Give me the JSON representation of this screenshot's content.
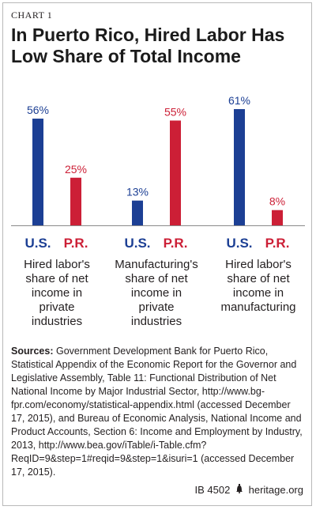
{
  "header": {
    "label": "CHART 1",
    "title_line1": "In Puerto Rico, Hired Labor Has",
    "title_line2": "Low Share of Total Income"
  },
  "chart_data": {
    "type": "bar",
    "categories": [
      "Hired labor's share of net income in private industries",
      "Manufacturing's share of net income in private industries",
      "Hired labor's share of net income in manufacturing"
    ],
    "category_lines": [
      [
        "Hired labor's",
        "share of net",
        "income in",
        "private",
        "industries"
      ],
      [
        "Manufacturing's",
        "share of net",
        "income in",
        "private",
        "industries"
      ],
      [
        "Hired labor's",
        "share of net",
        "income in",
        "manufacturing"
      ]
    ],
    "series": [
      {
        "name": "U.S.",
        "values": [
          56,
          13,
          61
        ],
        "labels": [
          "56%",
          "13%",
          "61%"
        ],
        "color": "#1c3f94"
      },
      {
        "name": "P.R.",
        "values": [
          25,
          55,
          8
        ],
        "labels": [
          "25%",
          "55%",
          "8%"
        ],
        "color": "#cc1f36"
      }
    ],
    "ylim": [
      0,
      61
    ],
    "legend": "below bars"
  },
  "sources": {
    "label": "Sources:",
    "text": "Government Development Bank for Puerto Rico, Statistical Appendix of the Economic Report for the Governor and Legislative Assembly, Table 11: Functional Distribution of Net National Income by Major Industrial Sector, http://www.bg-fpr.com/economy/statistical-appendix.html (accessed December 17, 2015), and Bureau of Economic Analysis, National Income and Product Accounts, Section 6: Income and Employment by Industry, 2013, http://www.bea.gov/iTable/i-Table.cfm?ReqID=9&step=1#reqid=9&step=1&isuri=1 (accessed December 17, 2015)."
  },
  "footer": {
    "code": "IB 4502",
    "site": "heritage.org",
    "icon": "liberty-bell-icon"
  }
}
